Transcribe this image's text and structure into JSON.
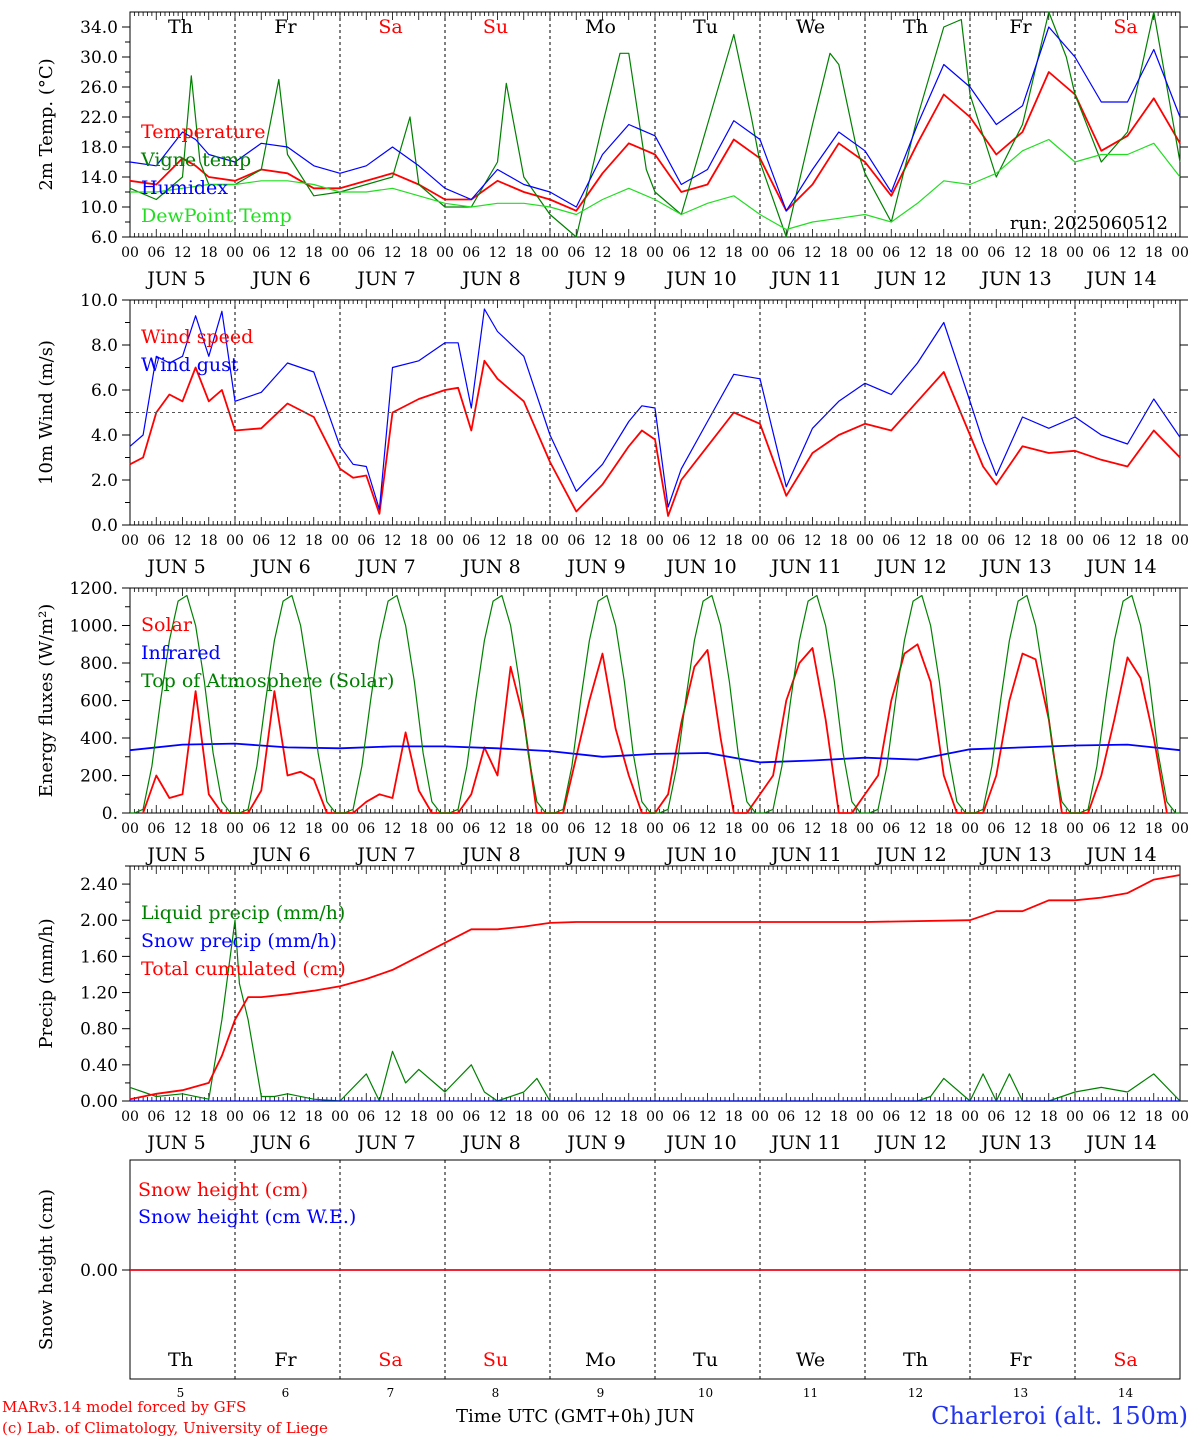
{
  "page": {
    "model_line": "MARv3.14 model forced by GFS",
    "copyright_line": "(c) Lab. of Climatology, University of Liege",
    "station": "Charleroi (alt. 150m)",
    "x_axis_label": "Time UTC (GMT+0h) JUN",
    "run_label": "run: 2025060512",
    "colors": {
      "red": "#ff0000",
      "blue": "#0000ff",
      "green": "#008000",
      "lightgreen": "#22dd22",
      "grey": "#555555"
    }
  },
  "time_axis": {
    "days": [
      5,
      6,
      7,
      8,
      9,
      10,
      11,
      12,
      13,
      14
    ],
    "month": "JUN",
    "hour_ticks": [
      "00",
      "06",
      "12",
      "18"
    ],
    "final_tick": "00",
    "weekdays": [
      "Th",
      "Fr",
      "Sa",
      "Su",
      "Mo",
      "Tu",
      "We",
      "Th",
      "Fr",
      "Sa"
    ],
    "weekend_color": "#ff0000"
  },
  "chart_data": [
    {
      "type": "line",
      "ylabel": "2m Temp. (°C)",
      "ylim": [
        6,
        36
      ],
      "yticks": [
        "6.0",
        "10.0",
        "14.0",
        "18.0",
        "22.0",
        "26.0",
        "30.0",
        "34.0"
      ],
      "x_unit": "hours since JUN 5 00 UTC",
      "series": [
        {
          "name": "Temperature",
          "color": "#ff0000",
          "x": [
            0,
            6,
            12,
            15,
            18,
            24,
            30,
            36,
            42,
            48,
            54,
            60,
            66,
            72,
            78,
            84,
            90,
            96,
            102,
            108,
            114,
            120,
            126,
            132,
            138,
            144,
            150,
            156,
            162,
            168,
            174,
            180,
            186,
            192,
            198,
            204,
            210,
            216,
            222,
            228,
            234,
            240
          ],
          "y": [
            13.5,
            13,
            16.5,
            15.5,
            14,
            13.5,
            15,
            14.5,
            12.5,
            12.5,
            13.5,
            14.5,
            13,
            11,
            11,
            13.5,
            12,
            11,
            9.5,
            14.5,
            18.5,
            17,
            12,
            13,
            19,
            16.5,
            9.5,
            13,
            18.5,
            16,
            11.5,
            18.5,
            25,
            22,
            17,
            20,
            28,
            25,
            17.5,
            19.5,
            24.5,
            18.5
          ]
        },
        {
          "name": "Vigne temp",
          "color": "#008000",
          "x": [
            0,
            6,
            12,
            14,
            16,
            18,
            24,
            30,
            34,
            36,
            42,
            48,
            54,
            60,
            64,
            66,
            72,
            78,
            84,
            86,
            90,
            96,
            102,
            108,
            112,
            114,
            118,
            120,
            126,
            132,
            138,
            142,
            144,
            150,
            156,
            160,
            162,
            166,
            168,
            174,
            180,
            186,
            190,
            192,
            198,
            204,
            210,
            214,
            216,
            222,
            228,
            234,
            240
          ],
          "y": [
            12.5,
            11,
            14,
            27.5,
            16,
            13,
            13,
            15,
            27,
            17,
            11.5,
            12,
            13,
            14,
            22,
            13,
            10,
            10,
            16,
            26.5,
            14,
            9,
            6,
            21,
            30.5,
            30.5,
            15,
            12,
            9,
            21,
            33,
            22,
            16,
            6,
            21,
            30.5,
            29,
            18,
            14.5,
            8,
            22,
            34,
            35,
            25,
            14,
            21,
            37,
            30,
            25,
            16,
            20,
            36,
            16
          ]
        },
        {
          "name": "Humidex",
          "color": "#0000ff",
          "x": [
            0,
            6,
            12,
            15,
            18,
            24,
            30,
            36,
            42,
            48,
            54,
            60,
            66,
            72,
            78,
            84,
            90,
            96,
            102,
            108,
            114,
            120,
            126,
            132,
            138,
            144,
            150,
            156,
            162,
            168,
            174,
            180,
            186,
            192,
            198,
            204,
            210,
            216,
            222,
            228,
            234,
            240
          ],
          "y": [
            16,
            15.5,
            20,
            19,
            17,
            16,
            18.5,
            18,
            15.5,
            14.5,
            15.5,
            18,
            15.5,
            12.5,
            11,
            15,
            13,
            12,
            10,
            17,
            21,
            19.5,
            13,
            15,
            21.5,
            19,
            9.5,
            15,
            20,
            17.5,
            12,
            21,
            29,
            26,
            21,
            23.5,
            34,
            30,
            24,
            24,
            31,
            22
          ]
        },
        {
          "name": "DewPoint Temp",
          "color": "#22dd22",
          "x": [
            0,
            6,
            12,
            18,
            24,
            30,
            36,
            42,
            48,
            54,
            60,
            66,
            72,
            78,
            84,
            90,
            96,
            102,
            108,
            114,
            120,
            126,
            132,
            138,
            144,
            150,
            156,
            162,
            168,
            174,
            180,
            186,
            192,
            198,
            204,
            210,
            216,
            222,
            228,
            234,
            240
          ],
          "y": [
            12,
            12,
            12.5,
            13,
            13,
            13.5,
            13.5,
            13,
            12,
            12,
            12.5,
            11.5,
            10.5,
            10,
            10.5,
            10.5,
            10,
            9,
            11,
            12.5,
            11,
            9,
            10.5,
            11.5,
            9,
            7,
            8,
            8.5,
            9,
            8,
            10.5,
            13.5,
            13,
            14.5,
            17.5,
            19,
            16,
            17,
            17,
            18.5,
            14
          ]
        }
      ]
    },
    {
      "type": "line",
      "ylabel": "10m Wind (m/s)",
      "ylim": [
        0,
        10
      ],
      "yticks": [
        "0.0",
        "2.0",
        "4.0",
        "6.0",
        "8.0",
        "10.0"
      ],
      "x_unit": "hours since JUN 5 00 UTC",
      "reference_line": 5,
      "series": [
        {
          "name": "Wind speed",
          "color": "#ff0000",
          "x": [
            0,
            3,
            6,
            9,
            12,
            15,
            18,
            21,
            24,
            30,
            36,
            42,
            48,
            51,
            54,
            57,
            60,
            66,
            72,
            75,
            78,
            81,
            84,
            90,
            96,
            102,
            108,
            114,
            117,
            120,
            123,
            126,
            132,
            138,
            144,
            150,
            156,
            162,
            168,
            174,
            180,
            186,
            192,
            195,
            198,
            204,
            210,
            216,
            222,
            228,
            234,
            240
          ],
          "y": [
            2.7,
            3,
            5,
            5.8,
            5.5,
            7,
            5.5,
            6,
            4.2,
            4.3,
            5.4,
            4.8,
            2.5,
            2.1,
            2.2,
            0.5,
            5,
            5.6,
            6,
            6.1,
            4.2,
            7.3,
            6.5,
            5.5,
            2.8,
            0.6,
            1.8,
            3.5,
            4.2,
            3.8,
            0.4,
            2,
            3.5,
            5,
            4.5,
            1.3,
            3.2,
            4,
            4.5,
            4.2,
            5.5,
            6.8,
            4,
            2.6,
            1.8,
            3.5,
            3.2,
            3.3,
            2.9,
            2.6,
            4.2,
            3
          ]
        },
        {
          "name": "Wind gust",
          "color": "#0000ff",
          "x": [
            0,
            3,
            6,
            9,
            12,
            15,
            18,
            21,
            24,
            30,
            36,
            42,
            48,
            51,
            54,
            57,
            60,
            66,
            72,
            75,
            78,
            81,
            84,
            90,
            96,
            102,
            108,
            114,
            117,
            120,
            123,
            126,
            132,
            138,
            144,
            150,
            156,
            162,
            168,
            174,
            180,
            186,
            192,
            195,
            198,
            204,
            210,
            216,
            222,
            228,
            234,
            240
          ],
          "y": [
            3.5,
            4,
            7.5,
            7.2,
            7.5,
            9.3,
            7.5,
            9.5,
            5.5,
            5.9,
            7.2,
            6.8,
            3.5,
            2.7,
            2.6,
            0.7,
            7,
            7.3,
            8.1,
            8.1,
            5.2,
            9.6,
            8.6,
            7.5,
            4,
            1.5,
            2.7,
            4.6,
            5.3,
            5.2,
            0.8,
            2.5,
            4.6,
            6.7,
            6.5,
            1.7,
            4.3,
            5.5,
            6.3,
            5.8,
            7.2,
            9,
            5.5,
            3.7,
            2.2,
            4.8,
            4.3,
            4.8,
            4,
            3.6,
            5.6,
            3.9
          ]
        }
      ]
    },
    {
      "type": "line",
      "ylabel": "Energy fluxes (W/m²)",
      "ylim": [
        0,
        1200
      ],
      "yticks": [
        "0.",
        "200.",
        "400.",
        "600.",
        "800.",
        "1000.",
        "1200."
      ],
      "x_unit": "hours since JUN 5 00 UTC",
      "series": [
        {
          "name": "Solar",
          "color": "#ff0000",
          "x": [
            3,
            6,
            9,
            12,
            15,
            18,
            21,
            27,
            30,
            33,
            36,
            39,
            42,
            45,
            51,
            54,
            57,
            60,
            63,
            66,
            69,
            75,
            78,
            81,
            84,
            87,
            90,
            93,
            99,
            102,
            105,
            108,
            111,
            114,
            117,
            120,
            123,
            126,
            129,
            132,
            135,
            138,
            141,
            147,
            150,
            153,
            156,
            159,
            162,
            165,
            171,
            174,
            177,
            180,
            183,
            186,
            189,
            195,
            198,
            201,
            204,
            207,
            210,
            213,
            219,
            222,
            225,
            228,
            231,
            234,
            237
          ],
          "y": [
            0,
            200,
            80,
            100,
            650,
            100,
            0,
            0,
            120,
            650,
            200,
            220,
            180,
            0,
            0,
            60,
            100,
            80,
            430,
            120,
            0,
            0,
            100,
            350,
            200,
            780,
            500,
            0,
            0,
            300,
            600,
            850,
            450,
            200,
            0,
            0,
            100,
            480,
            780,
            870,
            400,
            0,
            0,
            200,
            600,
            800,
            880,
            500,
            0,
            0,
            200,
            600,
            850,
            900,
            700,
            200,
            0,
            0,
            200,
            600,
            850,
            820,
            500,
            0,
            0,
            200,
            500,
            830,
            720,
            400,
            0
          ]
        },
        {
          "name": "Infrared",
          "color": "#0000ff",
          "x": [
            0,
            12,
            24,
            36,
            48,
            60,
            72,
            84,
            96,
            108,
            120,
            132,
            144,
            156,
            168,
            180,
            192,
            204,
            216,
            228,
            240
          ],
          "y": [
            335,
            365,
            370,
            350,
            345,
            355,
            355,
            345,
            330,
            300,
            315,
            320,
            270,
            280,
            295,
            285,
            340,
            350,
            360,
            365,
            335
          ]
        },
        {
          "name": "Top of Atmosphere (Solar)",
          "color": "#008000",
          "x": [
            0,
            1,
            3,
            5,
            7,
            9,
            11,
            13,
            15,
            17,
            19,
            21,
            23,
            24
          ],
          "y": [
            0,
            0,
            20,
            250,
            600,
            920,
            1130,
            1160,
            1000,
            700,
            320,
            60,
            0,
            0
          ],
          "repeat_daily": true
        }
      ]
    },
    {
      "type": "line",
      "ylabel": "Precip (mm/h)",
      "ylim": [
        0,
        2.6
      ],
      "yticks": [
        "0.00",
        "0.40",
        "0.80",
        "1.20",
        "1.60",
        "2.00",
        "2.40"
      ],
      "x_unit": "hours since JUN 5 00 UTC",
      "series": [
        {
          "name": "Liquid precip (mm/h)",
          "color": "#008000",
          "x": [
            0,
            6,
            12,
            18,
            21,
            24,
            25,
            27,
            30,
            33,
            36,
            42,
            48,
            54,
            57,
            60,
            63,
            66,
            72,
            78,
            81,
            84,
            90,
            93,
            96,
            102,
            108,
            180,
            183,
            186,
            192,
            195,
            198,
            201,
            204,
            210,
            216,
            222,
            228,
            234,
            240
          ],
          "y": [
            0.15,
            0.05,
            0.08,
            0.02,
            0.9,
            2.0,
            1.3,
            0.9,
            0.05,
            0.05,
            0.08,
            0.02,
            0.0,
            0.3,
            0.0,
            0.55,
            0.2,
            0.35,
            0.1,
            0.4,
            0.1,
            0.0,
            0.1,
            0.25,
            0.0,
            0.0,
            0.0,
            0.0,
            0.05,
            0.25,
            0.0,
            0.3,
            0.0,
            0.3,
            0.0,
            0.0,
            0.1,
            0.15,
            0.1,
            0.3,
            0.0
          ]
        },
        {
          "name": "Snow precip (mm/h)",
          "color": "#0000ff",
          "x": [
            0,
            240
          ],
          "y": [
            0,
            0
          ]
        },
        {
          "name": "Total cumulated (cm)",
          "color": "#ff0000",
          "x": [
            0,
            6,
            12,
            18,
            21,
            24,
            27,
            30,
            36,
            42,
            48,
            54,
            60,
            66,
            72,
            78,
            84,
            90,
            96,
            102,
            108,
            120,
            144,
            168,
            192,
            198,
            204,
            210,
            216,
            222,
            228,
            234,
            240
          ],
          "y": [
            0.02,
            0.08,
            0.12,
            0.2,
            0.5,
            0.9,
            1.15,
            1.15,
            1.18,
            1.22,
            1.27,
            1.35,
            1.45,
            1.6,
            1.75,
            1.9,
            1.9,
            1.93,
            1.97,
            1.98,
            1.98,
            1.98,
            1.98,
            1.98,
            2.0,
            2.1,
            2.1,
            2.22,
            2.22,
            2.25,
            2.3,
            2.45,
            2.5
          ]
        }
      ]
    },
    {
      "type": "line",
      "ylabel": "Snow height (cm)",
      "yticks": [
        "0.00"
      ],
      "x_unit": "hours since JUN 5 00 UTC",
      "series": [
        {
          "name": "Snow height (cm)",
          "color": "#ff0000",
          "x": [
            0,
            240
          ],
          "y": [
            0,
            0
          ]
        },
        {
          "name": "Snow height (cm W.E.)",
          "color": "#0000ff",
          "x": [
            0,
            240
          ],
          "y": [
            0,
            0
          ]
        }
      ]
    }
  ]
}
